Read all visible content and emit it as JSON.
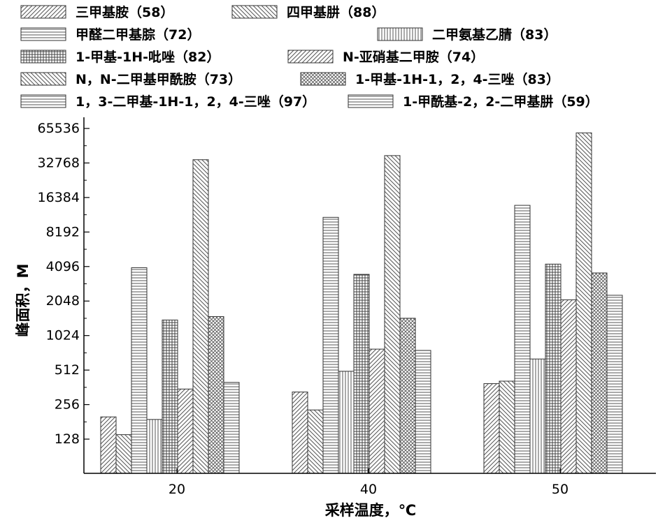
{
  "chart_data": {
    "type": "bar",
    "xlabel": "采样温度，℃",
    "ylabel": "峰面积，M",
    "y_scale": "log2",
    "ylim": [
      64,
      65536
    ],
    "yticks": [
      128,
      256,
      512,
      1024,
      2048,
      4096,
      8192,
      16384,
      32768,
      65536
    ],
    "yticklabels": [
      "128",
      "256",
      "512",
      "1024",
      "2048",
      "4096",
      "8192",
      "16384",
      "32768",
      "65536"
    ],
    "categories": [
      "20",
      "40",
      "50"
    ],
    "legend_position": "top",
    "series": [
      {
        "name": "三甲基胺（58）",
        "values": [
          200,
          330,
          390
        ]
      },
      {
        "name": "四甲基肼（88）",
        "values": [
          140,
          230,
          410
        ]
      },
      {
        "name": "甲醛二甲基腙（72）",
        "values": [
          4000,
          11000,
          14000
        ]
      },
      {
        "name": "二甲氨基乙腈（83）",
        "values": [
          190,
          500,
          640
        ]
      },
      {
        "name": "1-甲基-1H-吡唑（82）",
        "values": [
          1400,
          3500,
          4300
        ]
      },
      {
        "name": "N-亚硝基二甲胺（74）",
        "values": [
          350,
          780,
          2100
        ]
      },
      {
        "name": "N，N-二甲基甲酰胺（73）",
        "values": [
          35000,
          38000,
          60000
        ]
      },
      {
        "name": "1-甲基-1H-1，2，4-三唑（83）",
        "values": [
          1500,
          1450,
          3600
        ]
      },
      {
        "name": "1，3-二甲基-1H-1，2，4-三唑（97）",
        "values": [
          400,
          760,
          2300
        ]
      },
      {
        "name": "1-甲酰基-2，2-二甲基肼（59）",
        "values": [
          0,
          0,
          0
        ]
      }
    ]
  }
}
